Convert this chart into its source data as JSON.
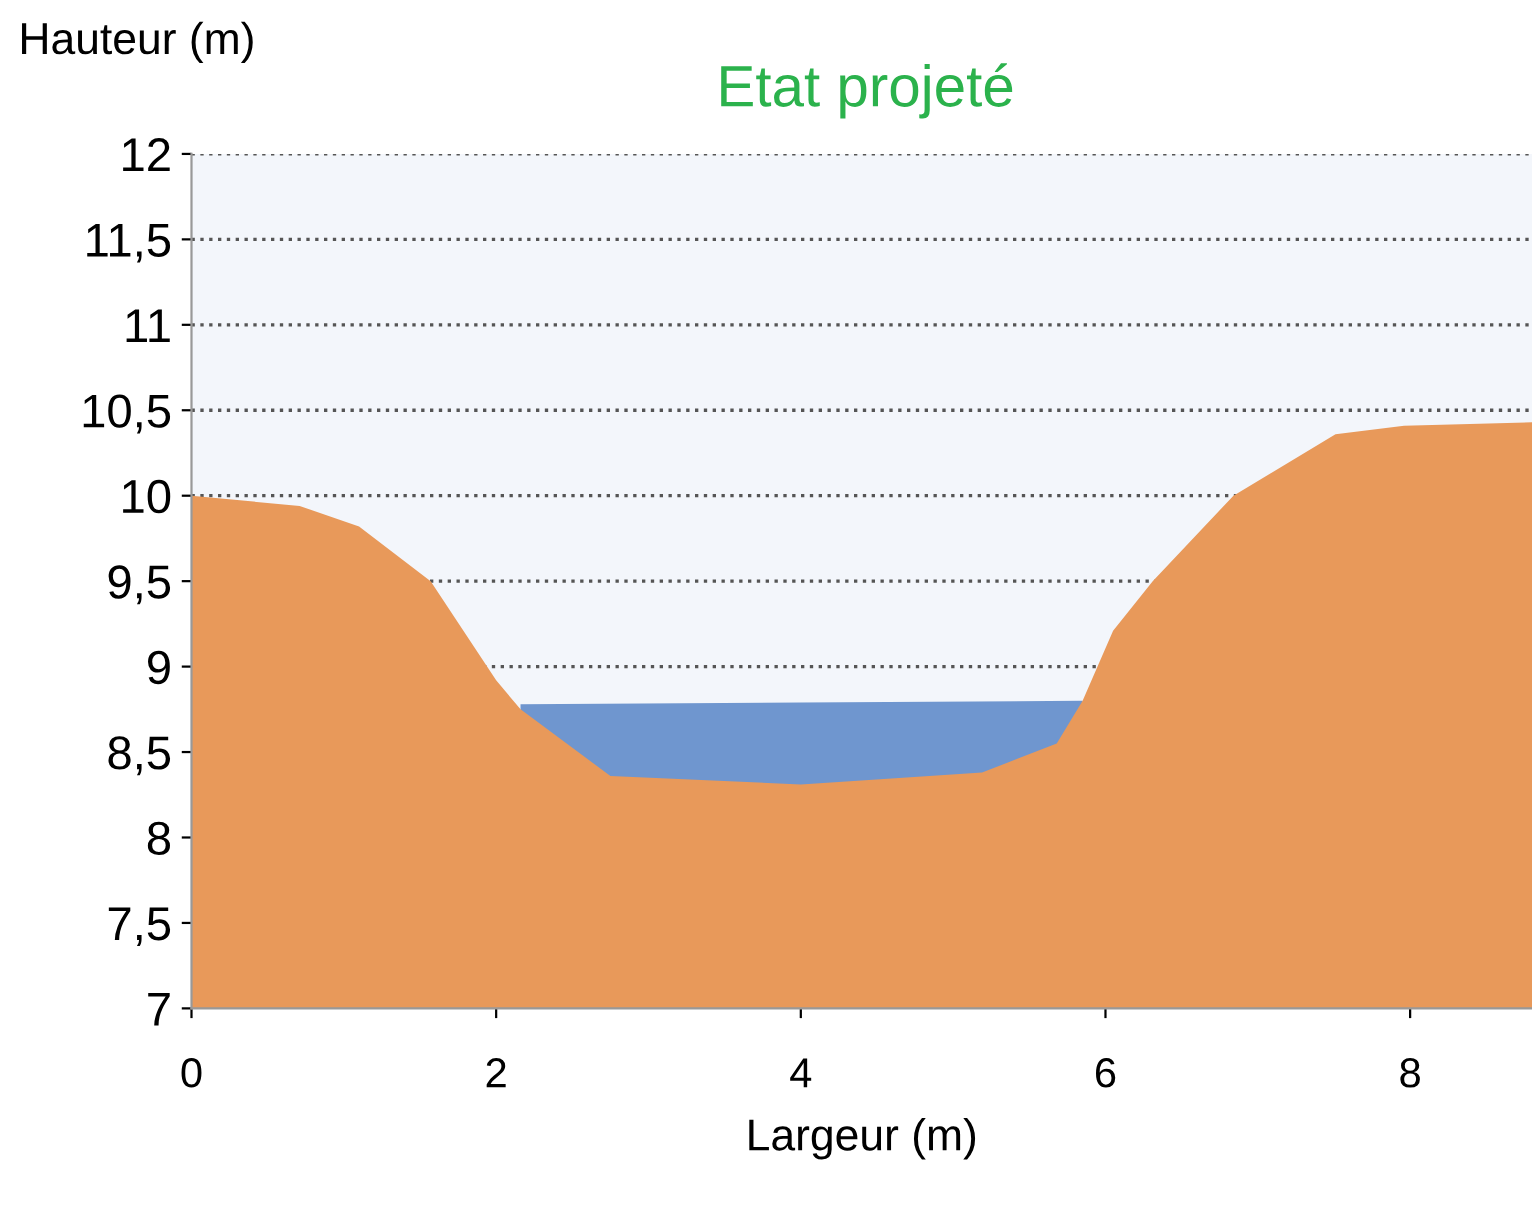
{
  "chart_data": {
    "type": "area",
    "title": "Etat projeté",
    "xlabel": "Largeur (m)",
    "ylabel": "Hauteur (m)",
    "series": [
      {
        "color": "#6f96cf",
        "x": [
          2.16,
          4.0,
          5.85
        ],
        "values": [
          8.78,
          8.79,
          8.8
        ]
      },
      {
        "color": "#e8995a",
        "x": [
          0,
          0.71,
          1.1,
          1.57,
          2.0,
          2.16,
          2.75,
          4.0,
          5.19,
          5.68,
          5.85,
          6.05,
          6.31,
          6.84,
          7.51,
          7.96,
          8.8
        ],
        "values": [
          10.0,
          9.94,
          9.82,
          9.5,
          8.92,
          8.75,
          8.36,
          8.31,
          8.38,
          8.55,
          8.8,
          9.21,
          9.5,
          10.0,
          10.36,
          10.41,
          10.43
        ]
      }
    ],
    "xlim": [
      0,
      8.8
    ],
    "ylim": [
      7,
      12
    ],
    "xticks": [
      0,
      2,
      4,
      6,
      8
    ],
    "yticks": [
      7,
      {
        "value": 7.5,
        "label": "7,5"
      },
      8,
      {
        "value": 8.5,
        "label": "8,5"
      },
      9,
      {
        "value": 9.5,
        "label": "9,5"
      },
      10,
      {
        "value": 10.5,
        "label": "10,5"
      },
      11,
      {
        "value": 11.5,
        "label": "11,5"
      },
      12
    ],
    "grid": "y"
  }
}
